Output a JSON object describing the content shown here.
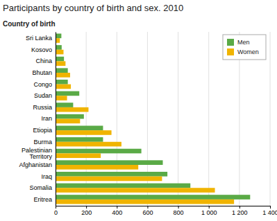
{
  "chart_data": {
    "type": "bar",
    "orientation": "horizontal",
    "title": "Participants by country of birth and sex. 2010",
    "ylabel": "Country of birth",
    "categories": [
      "Eritrea",
      "Somalia",
      "Iraq",
      "Afghanistan",
      "Palestinian\nTerritory",
      "Burma",
      "Etiopia",
      "Iran",
      "Russia",
      "Sudan",
      "Congo",
      "Bhutan",
      "China",
      "Kosovo",
      "Sri Lanka"
    ],
    "series": [
      {
        "name": "Men",
        "color": "#5aaa46",
        "values": [
          1270,
          880,
          730,
          700,
          560,
          310,
          310,
          185,
          115,
          155,
          80,
          80,
          55,
          40,
          38
        ]
      },
      {
        "name": "Women",
        "color": "#f0b400",
        "values": [
          1165,
          1040,
          695,
          540,
          295,
          430,
          365,
          160,
          215,
          75,
          100,
          95,
          65,
          52,
          28
        ]
      }
    ],
    "xlim": [
      0,
      1400
    ],
    "xticks": [
      0,
      200,
      400,
      600,
      800,
      {
        "value": 1000,
        "label": "1 000"
      },
      {
        "value": 1200,
        "label": "1 200"
      },
      {
        "value": 1400,
        "label": "1 400"
      }
    ],
    "grid": true,
    "legend": "upper right"
  }
}
